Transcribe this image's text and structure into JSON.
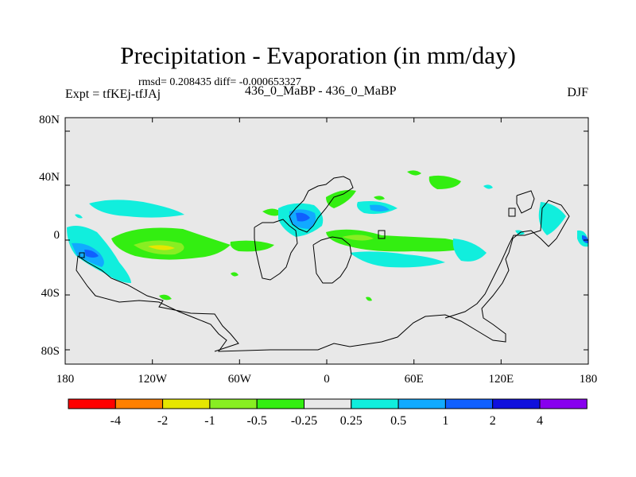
{
  "header": {
    "title": "Precipitation - Evaporation (in mm/day)",
    "stats": "rmsd= 0.208435  diff= -0.000653327",
    "experiment": "Expt = tfKEj-tfJAj",
    "center_label": "436_0_MaBP - 436_0_MaBP",
    "season": "DJF"
  },
  "axes": {
    "x_ticks": [
      "180",
      "120W",
      "60W",
      "0",
      "60E",
      "120E",
      "180"
    ],
    "y_ticks": [
      "80N",
      "40N",
      "0",
      "40S",
      "80S"
    ],
    "lon_range": [
      -180,
      180
    ],
    "lat_range": [
      -90,
      90
    ]
  },
  "colorbar": {
    "colors": [
      "#ff0000",
      "#ff8000",
      "#e6e600",
      "#88ee22",
      "#33ee11",
      "#e8e8e8",
      "#11eedd",
      "#11aaff",
      "#1060ff",
      "#1010dd",
      "#8800ee"
    ],
    "labels": [
      "-4",
      "-2",
      "-1",
      "-0.5",
      "-0.25",
      "0.25",
      "0.5",
      "1",
      "2",
      "4"
    ]
  },
  "map": {
    "background": "#e8e8e8"
  }
}
